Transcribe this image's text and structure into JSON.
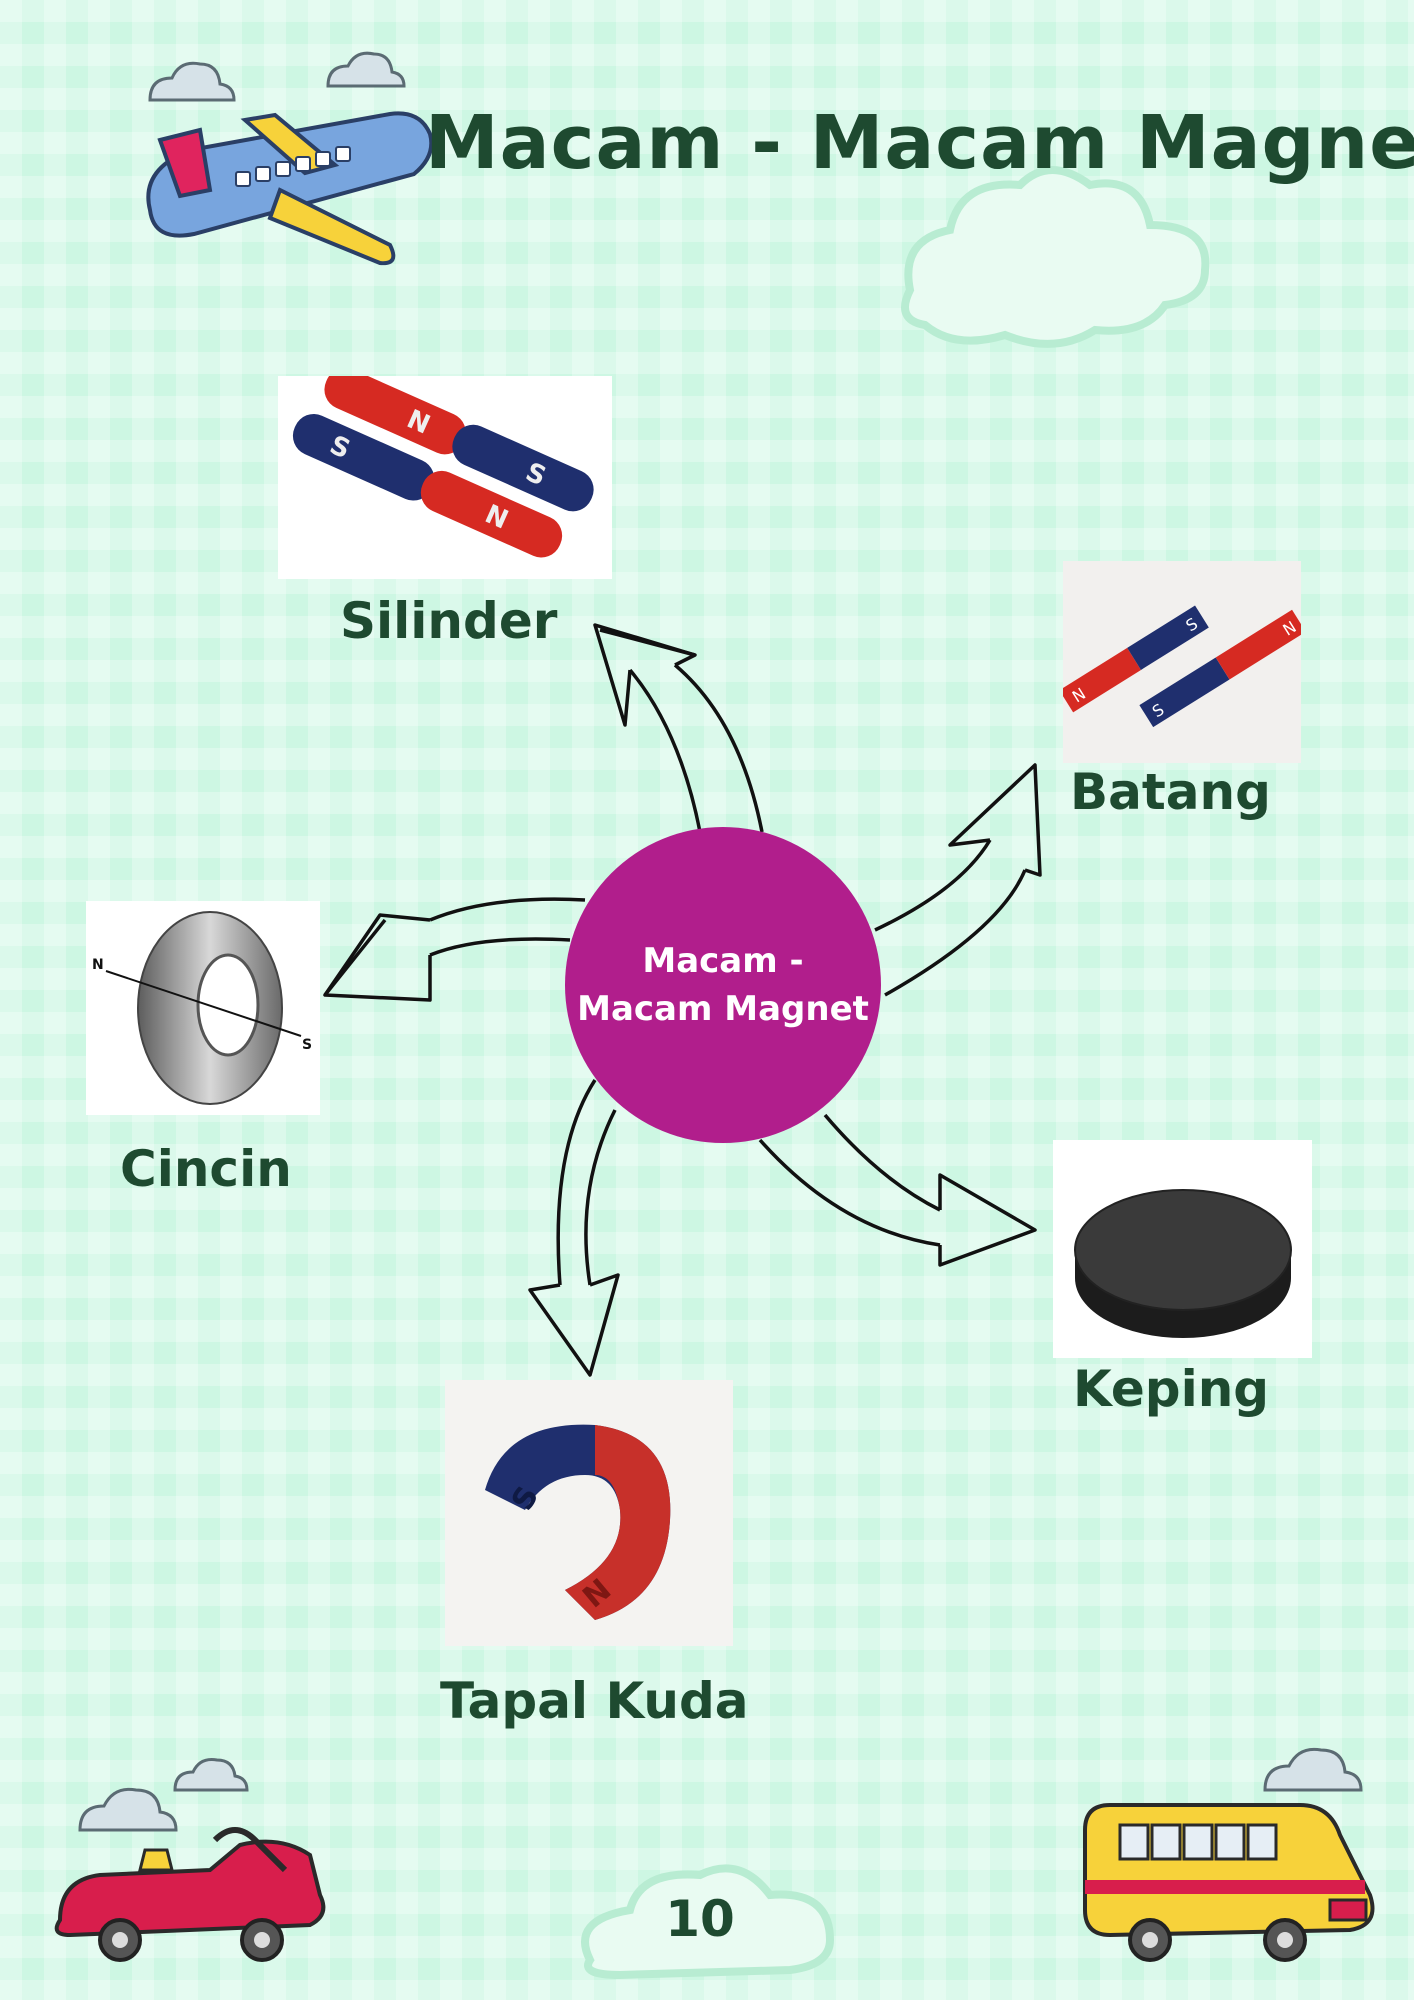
{
  "page": {
    "title": "Macam - Macam Magnet",
    "page_number": "10"
  },
  "center_node": {
    "label": "Macam - Macam Magnet",
    "color": "#b11e8c"
  },
  "magnet_types": [
    {
      "label": "Silinder",
      "icon": "cylinder-magnet-photo"
    },
    {
      "label": "Batang",
      "icon": "bar-magnet-photo"
    },
    {
      "label": "Cincin",
      "icon": "ring-magnet-photo"
    },
    {
      "label": "Keping",
      "icon": "disc-magnet-photo"
    },
    {
      "label": "Tapal Kuda",
      "icon": "horseshoe-magnet-photo"
    }
  ],
  "magnet_letters": {
    "north": "N",
    "south": "S"
  },
  "colors": {
    "background": "#cdf7e3",
    "text": "#1e4a30",
    "magnet_red": "#d62a22",
    "magnet_blue": "#1f2f6e"
  }
}
